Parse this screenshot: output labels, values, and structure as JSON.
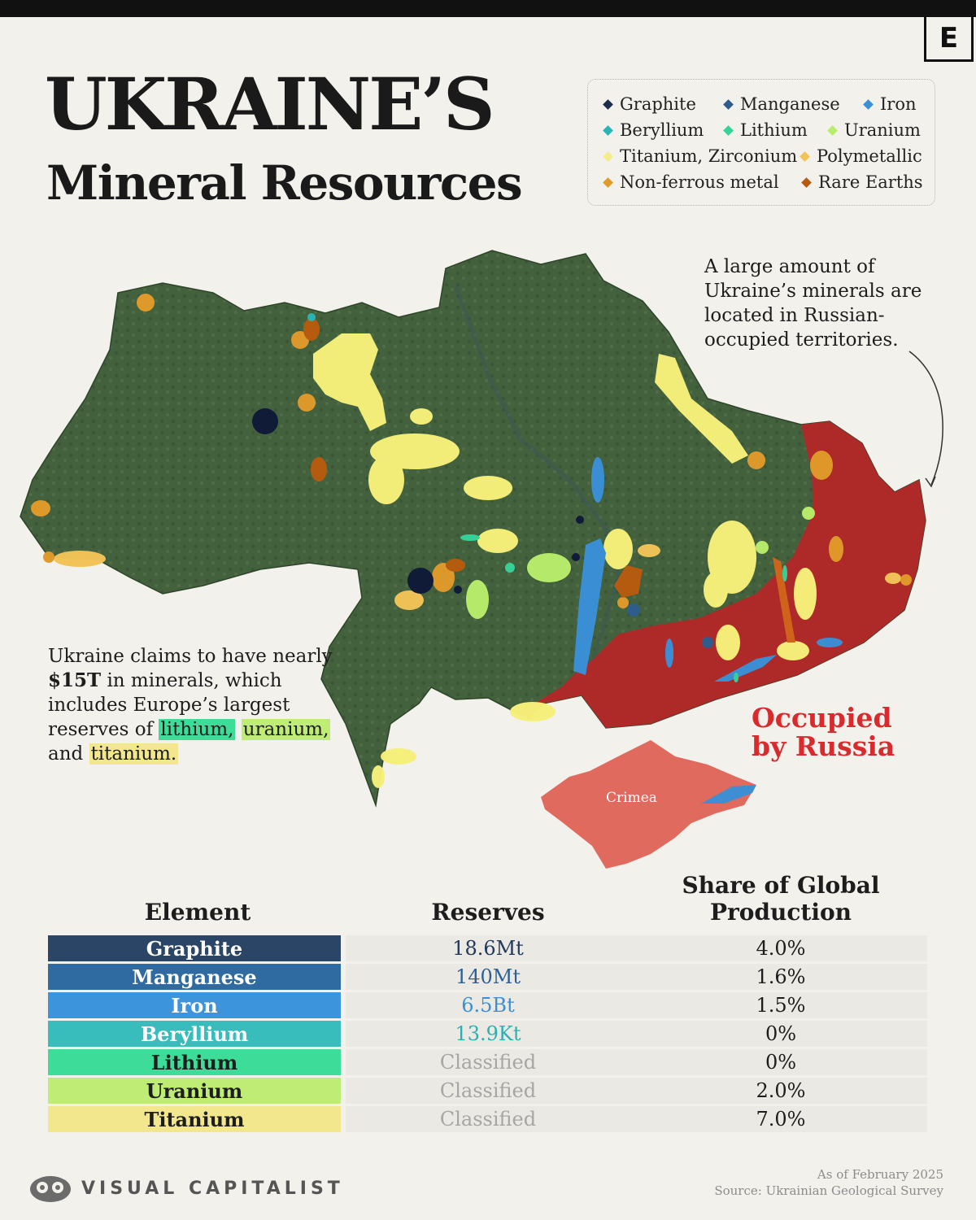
{
  "brand": {
    "mark": "E",
    "name": "VISUAL CAPITALIST"
  },
  "title": {
    "main": "UKRAINE’S",
    "sub": "Mineral Resources"
  },
  "legend": [
    {
      "label": "Graphite",
      "color": "#1c2e4a"
    },
    {
      "label": "Manganese",
      "color": "#2e5d8d"
    },
    {
      "label": "Iron",
      "color": "#3a8fd6"
    },
    {
      "label": "Beryllium",
      "color": "#2ab5b5"
    },
    {
      "label": "Lithium",
      "color": "#35d39a"
    },
    {
      "label": "Uranium",
      "color": "#b8ec6a"
    },
    {
      "label": "Titanium, Zirconium",
      "color": "#f4ec8a"
    },
    {
      "label": "Polymetallic",
      "color": "#f2c357"
    },
    {
      "label": "Non-ferrous metal",
      "color": "#e09a2a"
    },
    {
      "label": "Rare Earths",
      "color": "#b85b10"
    }
  ],
  "annotations": {
    "russia_note": "A large amount of Ukraine’s minerals are located in Russian-occupied territories.",
    "claims": {
      "part1": "Ukraine claims to have nearly ",
      "amount": "$15T",
      "part2": " in minerals, which includes Europe’s largest reserves of ",
      "lithium": "lithium,",
      "uranium": "uranium,",
      "part3": " and ",
      "titanium": "titanium."
    },
    "occupied_line1": "Occupied",
    "occupied_line2": "by Russia",
    "crimea": "Crimea"
  },
  "table": {
    "headers": {
      "element": "Element",
      "reserves": "Reserves",
      "share": "Share of Global Production"
    },
    "rows": [
      {
        "element": "Graphite",
        "reserves": "18.6Mt",
        "share": "4.0%",
        "bg": "#2b4566",
        "fg": "#ffffff",
        "val_color": "#24395a"
      },
      {
        "element": "Manganese",
        "reserves": "140Mt",
        "share": "1.6%",
        "bg": "#2f6aa0",
        "fg": "#ffffff",
        "val_color": "#2b5f95"
      },
      {
        "element": "Iron",
        "reserves": "6.5Bt",
        "share": "1.5%",
        "bg": "#3b94dc",
        "fg": "#ffffff",
        "val_color": "#3a8fd6"
      },
      {
        "element": "Beryllium",
        "reserves": "13.9Kt",
        "share": "0%",
        "bg": "#38bcbc",
        "fg": "#ffffff",
        "val_color": "#2ab0b0"
      },
      {
        "element": "Lithium",
        "reserves": "Classified",
        "share": "0%",
        "bg": "#3ddc98",
        "fg": "#1d1d1d",
        "val_color": "#a6a6a6"
      },
      {
        "element": "Uranium",
        "reserves": "Classified",
        "share": "2.0%",
        "bg": "#bfec74",
        "fg": "#1d1d1d",
        "val_color": "#a6a6a6"
      },
      {
        "element": "Titanium",
        "reserves": "Classified",
        "share": "7.0%",
        "bg": "#f2e78c",
        "fg": "#1d1d1d",
        "val_color": "#a6a6a6"
      }
    ]
  },
  "footer": {
    "date": "As of February 2025",
    "source": "Source: Ukrainian Geological Survey"
  }
}
